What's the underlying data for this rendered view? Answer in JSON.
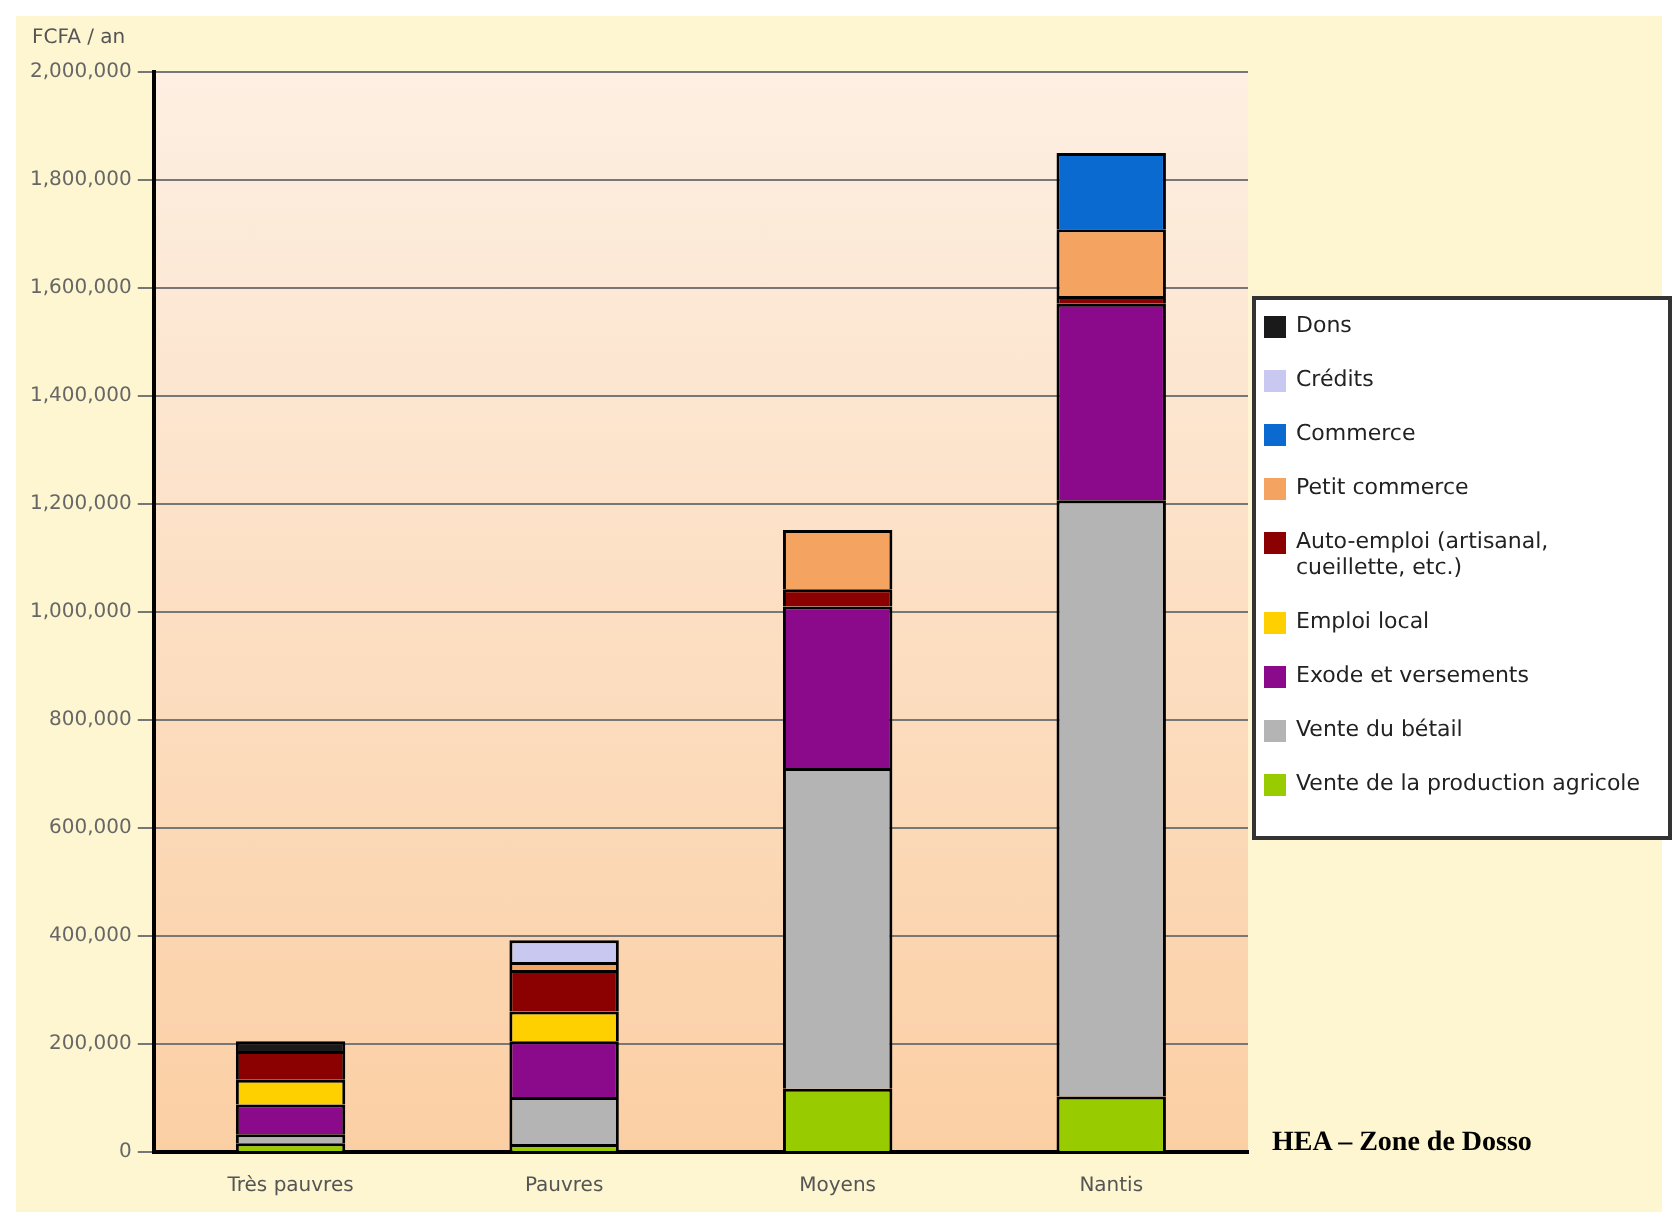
{
  "chart_data": {
    "type": "bar",
    "stacked": true,
    "ylabel": "FCFA / an",
    "categories": [
      "Très pauvres",
      "Pauvres",
      "Moyens",
      "Nantis"
    ],
    "series": [
      {
        "name": "Vente de la production agricole",
        "color": "#99cc00",
        "values": [
          16000,
          15000,
          117000,
          103000
        ]
      },
      {
        "name": "Vente du bétail",
        "color": "#b4b4b4",
        "values": [
          17000,
          87000,
          594000,
          1104000
        ]
      },
      {
        "name": "Exode et versements",
        "color": "#8b0a8b",
        "values": [
          55000,
          103000,
          299000,
          364000
        ]
      },
      {
        "name": "Emploi local",
        "color": "#ffd000",
        "values": [
          46000,
          55000,
          null,
          null
        ]
      },
      {
        "name": "Auto-emploi (artisanal, cueillette, etc.)",
        "color": "#8b0000",
        "values": [
          53000,
          77000,
          32000,
          14000
        ]
      },
      {
        "name": "Petit commerce",
        "color": "#f4a460",
        "values": [
          null,
          15000,
          110000,
          124000
        ]
      },
      {
        "name": "Commerce",
        "color": "#0a6ad0",
        "values": [
          null,
          null,
          null,
          141000
        ]
      },
      {
        "name": "Crédits",
        "color": "#c8c8f0",
        "values": [
          null,
          40000,
          null,
          null
        ]
      },
      {
        "name": "Dons",
        "color": "#1a1a1a",
        "values": [
          18000,
          null,
          null,
          null
        ]
      }
    ],
    "ylim": [
      0,
      2000000
    ],
    "yticks": [
      {
        "value": 0,
        "label": "0"
      },
      {
        "value": 200000,
        "label": "200,000"
      },
      {
        "value": 400000,
        "label": "400,000"
      },
      {
        "value": 600000,
        "label": "600,000"
      },
      {
        "value": 800000,
        "label": "800,000"
      },
      {
        "value": 1000000,
        "label": "1,000,000"
      },
      {
        "value": 1200000,
        "label": "1,200,000"
      },
      {
        "value": 1400000,
        "label": "1,400,000"
      },
      {
        "value": 1600000,
        "label": "1,600,000"
      },
      {
        "value": 1800000,
        "label": "1,800,000"
      },
      {
        "value": 2000000,
        "label": "2,000,000"
      }
    ],
    "grid": "y",
    "legend": "right",
    "annotations": [
      "HEA – Zone de Dosso"
    ]
  }
}
